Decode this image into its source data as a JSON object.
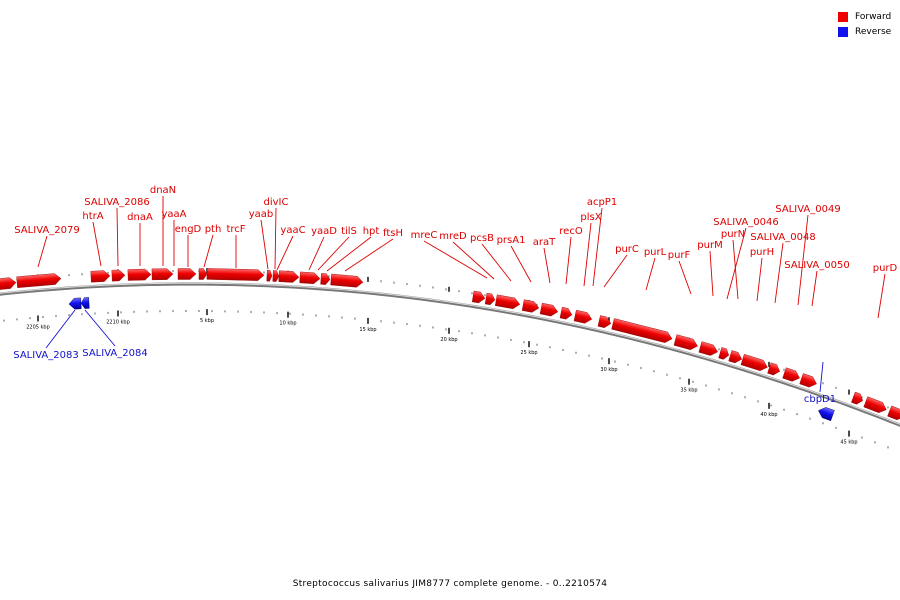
{
  "legend": {
    "forward": {
      "label": "Forward",
      "color": "#ee0000"
    },
    "reverse": {
      "label": "Reverse",
      "color": "#1111ee"
    }
  },
  "caption": "Streptococcus salivarius JIM8777 complete genome. - 0..2210574",
  "scale_labels": [
    "2205 kbp",
    "2210 kbp",
    "5 kbp",
    "10 kbp",
    "15 kbp",
    "20 kbp",
    "25 kbp",
    "30 kbp",
    "35 kbp",
    "40 kbp",
    "45 kbp"
  ],
  "forward_labels": [
    "SALIVA_2079",
    "htrA",
    "SALIVA_2086",
    "dnaA",
    "dnaN",
    "yaaA",
    "engD",
    "pth",
    "trcF",
    "yaab",
    "divIC",
    "yaaC",
    "yaaD",
    "tilS",
    "hpt",
    "ftsH",
    "mreC",
    "mreD",
    "pcsB",
    "prsA1",
    "araT",
    "recO",
    "plsX",
    "acpP1",
    "purC",
    "purL",
    "purF",
    "purM",
    "SALIVA_0046",
    "purN",
    "purH",
    "SALIVA_0048",
    "SALIVA_0049",
    "SALIVA_0050",
    "purD"
  ],
  "reverse_labels": [
    "SALIVA_2083",
    "SALIVA_2084",
    "cbpD1"
  ]
}
